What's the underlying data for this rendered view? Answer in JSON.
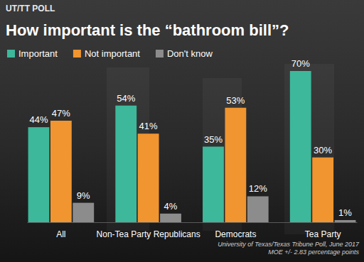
{
  "chart_data": {
    "type": "bar",
    "title": "How important is the “bathroom bill”?",
    "annotations": [
      "UT/TT POLL",
      "University of Texas/Texas Tribune Poll, June 2017",
      "MOE +/- 2.83 percentage points"
    ],
    "categories": [
      "All",
      "Non-Tea Party Republicans",
      "Democrats",
      "Tea Party"
    ],
    "series": [
      {
        "name": "Important",
        "color": "#3db89b",
        "values": [
          44,
          54,
          35,
          70
        ],
        "value_labels": [
          "44%",
          "54%",
          "35%",
          "70%"
        ]
      },
      {
        "name": "Not important",
        "color": "#f0952f",
        "values": [
          47,
          41,
          53,
          30
        ],
        "value_labels": [
          "47%",
          "41%",
          "53%",
          "30%"
        ]
      },
      {
        "name": "Don't know",
        "color": "#8c8c8c",
        "values": [
          9,
          4,
          12,
          1
        ],
        "value_labels": [
          "9%",
          "4%",
          "12%",
          "1%"
        ]
      }
    ],
    "ylim": [
      0,
      70
    ],
    "legend": "top-left",
    "data_labels": true,
    "tick_labels": "x",
    "grid": false
  }
}
